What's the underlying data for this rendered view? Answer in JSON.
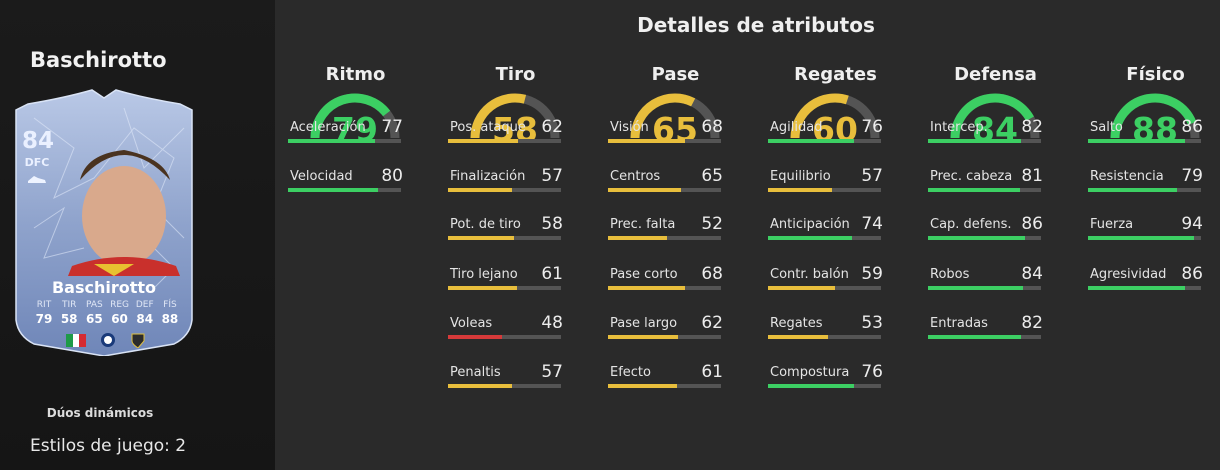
{
  "player": {
    "name": "Baschirotto",
    "card": {
      "rating": "84",
      "position": "DFC",
      "name": "Baschirotto",
      "stat_labels": [
        "RIT",
        "TIR",
        "PAS",
        "REG",
        "DEF",
        "FÍS"
      ],
      "stat_values": [
        "79",
        "58",
        "65",
        "60",
        "84",
        "88"
      ]
    },
    "duos_label": "Dúos dinámicos",
    "playstyles_label": "Estilos de juego: 2"
  },
  "section_title": "Detalles de atributos",
  "colors": {
    "green": "#3ccf63",
    "yellow": "#e8be3c",
    "red": "#d63a3a",
    "track": "#545454"
  },
  "categories": [
    {
      "name": "Ritmo",
      "value": "79",
      "attributes": [
        {
          "name": "Aceleración",
          "value": "77"
        },
        {
          "name": "Velocidad",
          "value": "80"
        }
      ]
    },
    {
      "name": "Tiro",
      "value": "58",
      "attributes": [
        {
          "name": "Pos. ataque",
          "value": "62"
        },
        {
          "name": "Finalización",
          "value": "57"
        },
        {
          "name": "Pot. de tiro",
          "value": "58"
        },
        {
          "name": "Tiro lejano",
          "value": "61"
        },
        {
          "name": "Voleas",
          "value": "48"
        },
        {
          "name": "Penaltis",
          "value": "57"
        }
      ]
    },
    {
      "name": "Pase",
      "value": "65",
      "attributes": [
        {
          "name": "Visión",
          "value": "68"
        },
        {
          "name": "Centros",
          "value": "65"
        },
        {
          "name": "Prec. falta",
          "value": "52"
        },
        {
          "name": "Pase corto",
          "value": "68"
        },
        {
          "name": "Pase largo",
          "value": "62"
        },
        {
          "name": "Efecto",
          "value": "61"
        }
      ]
    },
    {
      "name": "Regates",
      "value": "60",
      "attributes": [
        {
          "name": "Agilidad",
          "value": "76"
        },
        {
          "name": "Equilibrio",
          "value": "57"
        },
        {
          "name": "Anticipación",
          "value": "74"
        },
        {
          "name": "Contr. balón",
          "value": "59"
        },
        {
          "name": "Regates",
          "value": "53"
        },
        {
          "name": "Compostura",
          "value": "76"
        }
      ]
    },
    {
      "name": "Defensa",
      "value": "84",
      "attributes": [
        {
          "name": "Intercep.",
          "value": "82"
        },
        {
          "name": "Prec. cabeza",
          "value": "81"
        },
        {
          "name": "Cap. defens.",
          "value": "86"
        },
        {
          "name": "Robos",
          "value": "84"
        },
        {
          "name": "Entradas",
          "value": "82"
        }
      ]
    },
    {
      "name": "Físico",
      "value": "88",
      "attributes": [
        {
          "name": "Salto",
          "value": "86"
        },
        {
          "name": "Resistencia",
          "value": "79"
        },
        {
          "name": "Fuerza",
          "value": "94"
        },
        {
          "name": "Agresividad",
          "value": "86"
        }
      ]
    }
  ]
}
